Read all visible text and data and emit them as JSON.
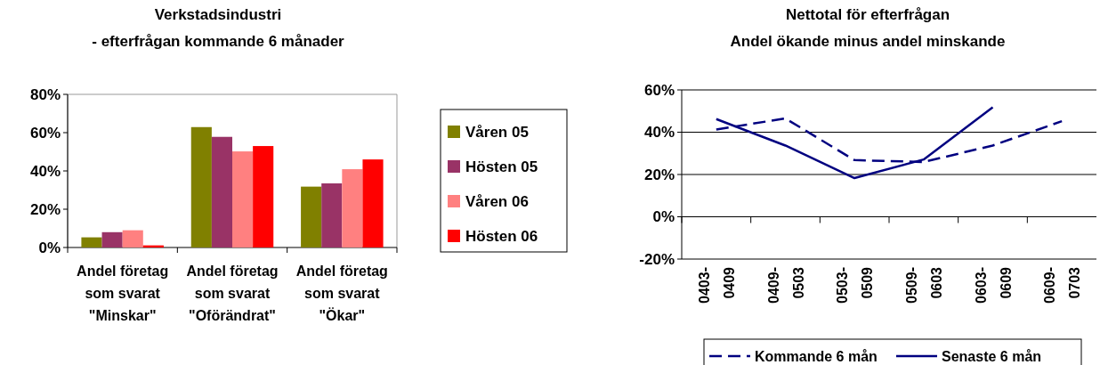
{
  "chart_data": [
    {
      "type": "bar",
      "title": "Verkstadsindustri\n- efterfrågan kommande 6 månader",
      "categories": [
        "Andel företag som svarat \"Minskar\"",
        "Andel företag som svarat \"Oförändrat\"",
        "Andel företag som svarat \"Ökar\""
      ],
      "series": [
        {
          "name": "Våren 05",
          "color": "#808000",
          "values": [
            5.3,
            62.9,
            31.8
          ]
        },
        {
          "name": "Hösten 05",
          "color": "#993366",
          "values": [
            8,
            57.8,
            33.5
          ]
        },
        {
          "name": "Våren 06",
          "color": "#ff8080",
          "values": [
            9,
            50.2,
            40.9
          ]
        },
        {
          "name": "Hösten 06",
          "color": "#ff0000",
          "values": [
            1.1,
            53,
            46
          ]
        }
      ],
      "ylim": [
        0,
        80
      ],
      "yticks": [
        {
          "value": 0,
          "label": "0%"
        },
        {
          "value": 20,
          "label": "20%"
        },
        {
          "value": 40,
          "label": "40%"
        },
        {
          "value": 60,
          "label": "60%"
        },
        {
          "value": 80,
          "label": "80%"
        }
      ],
      "grid": false,
      "legend": "right"
    },
    {
      "type": "line",
      "title": "Nettotal för efterfrågan\nAndel ökande minus andel minskande",
      "categories": [
        "0403-0409",
        "0409-0503",
        "0503-0509",
        "0509-0603",
        "0603-0609",
        "0609-0703"
      ],
      "series": [
        {
          "name": "Kommande 6 mån",
          "color": "#000080",
          "line_style": "dashed",
          "values": [
            41.3,
            46.5,
            26.8,
            25.9,
            33.7,
            45.2
          ]
        },
        {
          "name": "Senaste 6 mån",
          "color": "#000080",
          "line_style": "solid",
          "values": [
            46.2,
            33.7,
            18.3,
            27.1,
            51.8,
            null
          ]
        }
      ],
      "ylim": [
        -20,
        60
      ],
      "yticks": [
        {
          "value": -20,
          "label": "-20%"
        },
        {
          "value": 0,
          "label": "0%"
        },
        {
          "value": 20,
          "label": "20%"
        },
        {
          "value": 40,
          "label": "40%"
        },
        {
          "value": 60,
          "label": "60%"
        }
      ],
      "grid": "y",
      "legend": "bottom",
      "marker": "none"
    }
  ]
}
